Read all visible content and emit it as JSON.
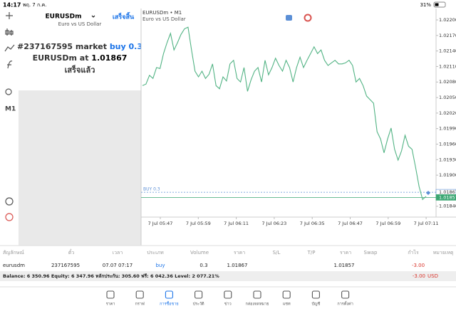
{
  "status": {
    "time": "14:17",
    "date": "พฤ. 7 ก.ค.",
    "battery": "31%"
  },
  "left_toolbar": {
    "timeframe": "M1"
  },
  "order_panel": {
    "symbol": "EURUSDm",
    "done_button": "เสร็จสิ้น",
    "description": "Euro vs US Dollar",
    "line1_prefix": "#237167595 market",
    "line1_highlight": "buy 0.3",
    "line2_prefix": "EURUSDm at",
    "line2_highlight": "1.01867",
    "line3": "เสร็จแล้ว"
  },
  "chart_data": {
    "type": "line",
    "title": "EURUSDm • M1",
    "subtitle": "Euro vs US Dollar",
    "color": "#52b384",
    "values": [
      1.02073,
      1.02076,
      1.02093,
      1.02087,
      1.02108,
      1.02106,
      1.02135,
      1.02156,
      1.02174,
      1.02142,
      1.02156,
      1.02172,
      1.02183,
      1.02186,
      1.02142,
      1.02101,
      1.0209,
      1.02101,
      1.02087,
      1.02095,
      1.02115,
      1.02073,
      1.02067,
      1.0209,
      1.02082,
      1.02115,
      1.02122,
      1.02087,
      1.0208,
      1.02108,
      1.02062,
      1.02084,
      1.02101,
      1.02108,
      1.0208,
      1.02122,
      1.02094,
      1.02108,
      1.02126,
      1.02112,
      1.02101,
      1.02122,
      1.02108,
      1.0208,
      1.02108,
      1.02128,
      1.02108,
      1.02122,
      1.02135,
      1.02148,
      1.02135,
      1.02142,
      1.02122,
      1.02112,
      1.02117,
      1.02122,
      1.02115,
      1.02115,
      1.02117,
      1.02122,
      1.02112,
      1.0208,
      1.02087,
      1.02073,
      1.02053,
      1.02046,
      1.02039,
      1.01984,
      1.0197,
      1.01943,
      1.0197,
      1.01991,
      1.0195,
      1.01929,
      1.01947,
      1.01977,
      1.01956,
      1.0195,
      1.01915,
      1.01878,
      1.01853,
      1.01859
    ],
    "ylim": [
      1.01819,
      1.02222
    ],
    "yticks": [
      {
        "value": 1.022,
        "label": "1.02200"
      },
      {
        "value": 1.0217,
        "label": "1.02170"
      },
      {
        "value": 1.0214,
        "label": "1.02140"
      },
      {
        "value": 1.0211,
        "label": "1.02110"
      },
      {
        "value": 1.0208,
        "label": "1.02080"
      },
      {
        "value": 1.0205,
        "label": "1.02050"
      },
      {
        "value": 1.0202,
        "label": "1.02020"
      },
      {
        "value": 1.0199,
        "label": "1.01990"
      },
      {
        "value": 1.0196,
        "label": "1.01960"
      },
      {
        "value": 1.0193,
        "label": "1.01930"
      },
      {
        "value": 1.019,
        "label": "1.01900"
      },
      {
        "value": 1.0184,
        "label": "1.01840"
      }
    ],
    "xtick_labels": [
      "7 Jul 05:47",
      "7 Jul 05:59",
      "7 Jul 06:11",
      "7 Jul 06:23",
      "7 Jul 06:35",
      "7 Jul 06:47",
      "7 Jul 06:59",
      "7 Jul 07:11"
    ],
    "price_lines": [
      {
        "name": "BUY 0.3",
        "value": 1.01867,
        "label": "1.01867",
        "color": "#5b8fd6",
        "dashed": true
      },
      {
        "value": 1.01857,
        "label": "1.01857",
        "color": "#3aa672",
        "dashed": false
      }
    ]
  },
  "table": {
    "headers": [
      "สัญลักษณ์",
      "ตั๋ว",
      "เวลา",
      "ประเภท",
      "Volume",
      "ราคา",
      "S/L",
      "T/P",
      "ราคา",
      "Swap",
      "กำไร",
      "หมายเหตุ"
    ],
    "rows": [
      [
        "eurusdm",
        "237167595",
        "07.07 07:17",
        "buy",
        "0.3",
        "1.01867",
        null,
        null,
        "1.01857",
        null,
        "-3.00",
        null
      ]
    ],
    "footer": {
      "summary": "Balance: 6 350.96 Equity: 6 347.96 หลักประกัน: 305.60 ฟรี: 6 042.36 Level: 2 077.21%",
      "profit": "-3.00",
      "currency": "USD"
    }
  },
  "tabs": [
    "ราคา",
    "กราฟ",
    "การซื้อขาย",
    "ประวัติ",
    "ข่าว",
    "กล่องจดหมาย",
    "แชท",
    "บัญชี",
    "การตั้งค่า"
  ],
  "active_tab": 2
}
